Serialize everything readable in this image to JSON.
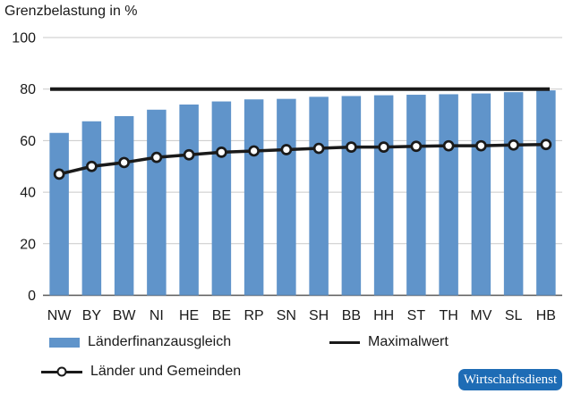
{
  "title": "Grenzbelastung in %",
  "source_badge": "Wirtschaftsdienst",
  "colors": {
    "bar": "#6094CA",
    "line": "#1A1A1A",
    "grid": "#C9C9C9",
    "axis": "#595959",
    "text": "#1A1A1A",
    "badge_bg": "#1E6CB5",
    "badge_text": "#FFFFFF"
  },
  "legend": [
    {
      "label": "Länderfinanzausgleich",
      "swatch": "bar"
    },
    {
      "label": "Maximalwert",
      "swatch": "line"
    },
    {
      "label": "Länder und Gemeinden",
      "swatch": "line-marker"
    }
  ],
  "chart_data": {
    "type": "bar",
    "title": "Grenzbelastung in %",
    "categories": [
      "NW",
      "BY",
      "BW",
      "NI",
      "HE",
      "BE",
      "RP",
      "SN",
      "SH",
      "BB",
      "HH",
      "ST",
      "TH",
      "MV",
      "SL",
      "HB"
    ],
    "series": [
      {
        "name": "Länderfinanzausgleich",
        "type": "bar",
        "values": [
          63,
          67.5,
          69.5,
          72,
          74,
          75.2,
          76,
          76.2,
          77,
          77.3,
          77.6,
          77.8,
          78,
          78.3,
          78.8,
          79.5
        ]
      },
      {
        "name": "Länder und Gemeinden",
        "type": "line",
        "values": [
          47,
          50,
          51.5,
          53.5,
          54.5,
          55.5,
          56,
          56.5,
          57,
          57.5,
          57.5,
          57.8,
          58,
          58,
          58.3,
          58.5
        ]
      },
      {
        "name": "Maximalwert",
        "type": "hline",
        "value": 80
      }
    ],
    "ylim": [
      0,
      100
    ],
    "yticks": [
      0,
      20,
      40,
      60,
      80,
      100
    ],
    "xlabel": "",
    "ylabel": "Grenzbelastung in %",
    "grid": true,
    "legend_position": "bottom"
  }
}
